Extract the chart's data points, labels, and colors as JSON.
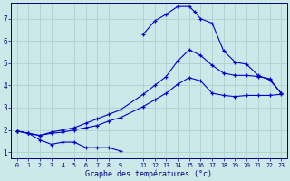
{
  "xlabel": "Graphe des températures (°c)",
  "bg_color": "#cce8e8",
  "grid_color": "#aacccc",
  "line_color": "#0000cc",
  "xlim": [
    -0.5,
    23.5
  ],
  "ylim": [
    0.7,
    7.7
  ],
  "xticks": [
    0,
    1,
    2,
    3,
    4,
    5,
    6,
    7,
    8,
    9,
    11,
    12,
    13,
    14,
    15,
    16,
    17,
    18,
    19,
    20,
    21,
    22,
    23
  ],
  "yticks": [
    1,
    2,
    3,
    4,
    5,
    6,
    7
  ],
  "line1_x": [
    0,
    1,
    2,
    3,
    4,
    5,
    6,
    7,
    8,
    9
  ],
  "line1_y": [
    1.95,
    1.85,
    1.55,
    1.35,
    1.45,
    1.45,
    1.2,
    1.2,
    1.2,
    1.05
  ],
  "line2_x": [
    0,
    1,
    2,
    3,
    4,
    5,
    6,
    7,
    8,
    9,
    11,
    12,
    13,
    14,
    15,
    16,
    17,
    18,
    19,
    20,
    21,
    22,
    23
  ],
  "line2_y": [
    1.95,
    1.85,
    1.75,
    1.85,
    1.9,
    2.0,
    2.1,
    2.2,
    2.4,
    2.55,
    3.05,
    3.35,
    3.65,
    4.05,
    4.35,
    4.2,
    3.65,
    3.55,
    3.5,
    3.55,
    3.55,
    3.55,
    3.6
  ],
  "line3_x": [
    0,
    1,
    2,
    3,
    4,
    5,
    6,
    7,
    8,
    9,
    11,
    12,
    13,
    14,
    15,
    16,
    17,
    18,
    19,
    20,
    21,
    22,
    23
  ],
  "line3_y": [
    1.95,
    1.85,
    1.75,
    1.9,
    2.0,
    2.1,
    2.3,
    2.5,
    2.7,
    2.9,
    3.6,
    4.0,
    4.4,
    5.1,
    5.6,
    5.35,
    4.9,
    4.55,
    4.45,
    4.45,
    4.4,
    4.3,
    3.65
  ],
  "line4_x": [
    11,
    12,
    13,
    14,
    15,
    15.5,
    16,
    17,
    18,
    19,
    20,
    21,
    22,
    23
  ],
  "line4_y": [
    6.3,
    6.9,
    7.2,
    7.55,
    7.55,
    7.3,
    7.0,
    6.8,
    5.55,
    5.05,
    4.95,
    4.45,
    4.25,
    3.65
  ]
}
